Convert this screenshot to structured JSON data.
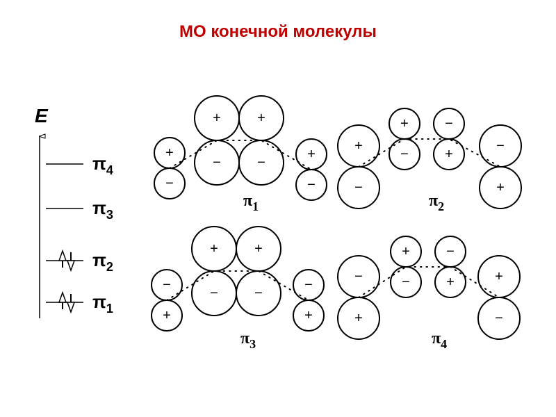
{
  "title": "МО конечной молекулы",
  "energy_diagram": {
    "axis_label": "E",
    "levels": [
      {
        "symbol": "π",
        "sub": "4",
        "electrons": 0
      },
      {
        "symbol": "π",
        "sub": "3",
        "electrons": 0
      },
      {
        "symbol": "π",
        "sub": "2",
        "electrons": 2
      },
      {
        "symbol": "π",
        "sub": "1",
        "electrons": 2
      }
    ]
  },
  "orbitals": [
    {
      "symbol": "π",
      "sub": "1",
      "signs": [
        [
          "+",
          "−"
        ],
        [
          "+",
          "−"
        ],
        [
          "+",
          "−"
        ],
        [
          "+",
          "−"
        ]
      ]
    },
    {
      "symbol": "π",
      "sub": "2",
      "signs": [
        [
          "+",
          "−"
        ],
        [
          "+",
          "−"
        ],
        [
          "−",
          "+"
        ],
        [
          "−",
          "+"
        ]
      ]
    },
    {
      "symbol": "π",
      "sub": "3",
      "signs": [
        [
          "−",
          "+"
        ],
        [
          "+",
          "−"
        ],
        [
          "+",
          "−"
        ],
        [
          "−",
          "+"
        ]
      ]
    },
    {
      "symbol": "π",
      "sub": "4",
      "signs": [
        [
          "−",
          "+"
        ],
        [
          "+",
          "−"
        ],
        [
          "−",
          "+"
        ],
        [
          "+",
          "−"
        ]
      ]
    }
  ]
}
